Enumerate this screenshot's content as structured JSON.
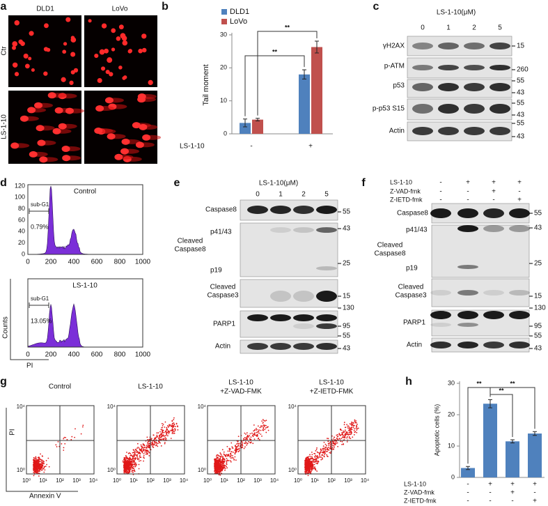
{
  "panels": {
    "a": {
      "label": "a",
      "columns": [
        "DLD1",
        "LoVo"
      ],
      "rows": [
        "Ctr",
        "LS-1-10"
      ]
    },
    "c": {
      "label": "c",
      "header": "LS-1-10(μM)",
      "lanes": [
        "0",
        "1",
        "2",
        "5"
      ],
      "rows": [
        {
          "name": "γH2AX",
          "markers": [
            "15"
          ]
        },
        {
          "name": "p-ATM",
          "markers": [
            "260"
          ]
        },
        {
          "name": "p53",
          "markers": [
            "55",
            "43"
          ]
        },
        {
          "name": "p-p53 S15",
          "markers": [
            "55",
            "43"
          ]
        },
        {
          "name": "Actin",
          "markers": [
            "55",
            "43"
          ]
        }
      ]
    },
    "d": {
      "label": "d",
      "plots": [
        {
          "title": "Control",
          "gate": "sub-G1",
          "percent": "0.79%"
        },
        {
          "title": "LS-1-10",
          "gate": "sub-G1",
          "percent": "13.05%"
        }
      ],
      "yticks": [
        "120",
        "100",
        "80",
        "60",
        "40",
        "20",
        "0"
      ],
      "xticks": [
        "0",
        "200",
        "400",
        "600",
        "800",
        "1000"
      ],
      "ylabel": "Counts",
      "xlabel": "PI"
    },
    "e": {
      "label": "e",
      "header": "LS-1-10(μM)",
      "lanes": [
        "0",
        "1",
        "2",
        "5"
      ],
      "rows": [
        {
          "name": "Caspase8",
          "markers": [
            "55"
          ]
        },
        {
          "name": [
            "Cleaved",
            "Caspase8"
          ],
          "bands": [
            "p41/43",
            "p19"
          ],
          "markers": [
            "43",
            "25"
          ]
        },
        {
          "name": [
            "Cleaved",
            "Caspase3"
          ],
          "markers": [
            "15"
          ]
        },
        {
          "name": "PARP1",
          "markers": [
            "130",
            "95"
          ]
        },
        {
          "name": "Actin",
          "markers": [
            "55",
            "43"
          ]
        }
      ]
    },
    "f": {
      "label": "f",
      "treatments": [
        {
          "name": "LS-1-10",
          "signs": [
            "-",
            "+",
            "+",
            "+"
          ]
        },
        {
          "name": "Z-VAD-fmk",
          "signs": [
            "-",
            "-",
            "+",
            "-"
          ]
        },
        {
          "name": "Z-IETD-fmk",
          "signs": [
            "-",
            "-",
            "-",
            "+"
          ]
        }
      ],
      "rows": [
        {
          "name": "Caspase8",
          "markers": [
            "55"
          ]
        },
        {
          "name": [
            "Cleaved",
            "Caspase8"
          ],
          "bands": [
            "p41/43",
            "p19"
          ],
          "markers": [
            "43",
            "25"
          ]
        },
        {
          "name": [
            "Cleaved",
            "Caspase3"
          ],
          "markers": [
            "15"
          ]
        },
        {
          "name": "PARP1",
          "markers": [
            "130",
            "95"
          ]
        },
        {
          "name": "Actin",
          "markers": [
            "55",
            "43"
          ]
        }
      ]
    },
    "g": {
      "label": "g",
      "plots": [
        {
          "title": [
            "Control"
          ]
        },
        {
          "title": [
            "LS-1-10"
          ]
        },
        {
          "title": [
            "LS-1-10",
            "+Z-VAD-FMK"
          ]
        },
        {
          "title": [
            "LS-1-10",
            "+Z-IETD-FMK"
          ]
        }
      ],
      "yticks": [
        "10⁰",
        "10⁴"
      ],
      "xticks": [
        "10⁰",
        "10¹",
        "10²",
        "10³",
        "10⁴"
      ],
      "ylabel": "PI",
      "xlabel": "Annexin V"
    }
  },
  "chart_data": [
    {
      "panel": "b",
      "type": "bar",
      "ylabel": "Tail moment",
      "xlabel": "LS-1-10",
      "categories": [
        "-",
        "+"
      ],
      "series": [
        {
          "name": "DLD1",
          "color": "#4f81bd",
          "values": [
            3.3,
            18.0
          ],
          "errors": [
            1.2,
            1.4
          ]
        },
        {
          "name": "LoVo",
          "color": "#c0504d",
          "values": [
            4.3,
            26.3
          ],
          "errors": [
            0.4,
            1.8
          ]
        }
      ],
      "ylim": [
        0,
        30
      ],
      "yticks": [
        0,
        10,
        20,
        30
      ],
      "annotations": [
        "**",
        "**"
      ]
    },
    {
      "panel": "h",
      "type": "bar",
      "ylabel": "Apoptotic cells (%)",
      "color": "#4f81bd",
      "values": [
        3.0,
        23.5,
        11.5,
        14.0
      ],
      "errors": [
        0.5,
        1.3,
        0.5,
        0.6
      ],
      "conditions": [
        {
          "name": "LS-1-10",
          "signs": [
            "-",
            "+",
            "+",
            "+"
          ]
        },
        {
          "name": "Z-VAD-fmk",
          "signs": [
            "-",
            "-",
            "+",
            "-"
          ]
        },
        {
          "name": "Z-IETD-fmk",
          "signs": [
            "-",
            "-",
            "-",
            "+"
          ]
        }
      ],
      "ylim": [
        0,
        30
      ],
      "yticks": [
        0,
        10,
        20,
        30
      ],
      "annotations": [
        "**",
        "**",
        "**"
      ]
    }
  ]
}
